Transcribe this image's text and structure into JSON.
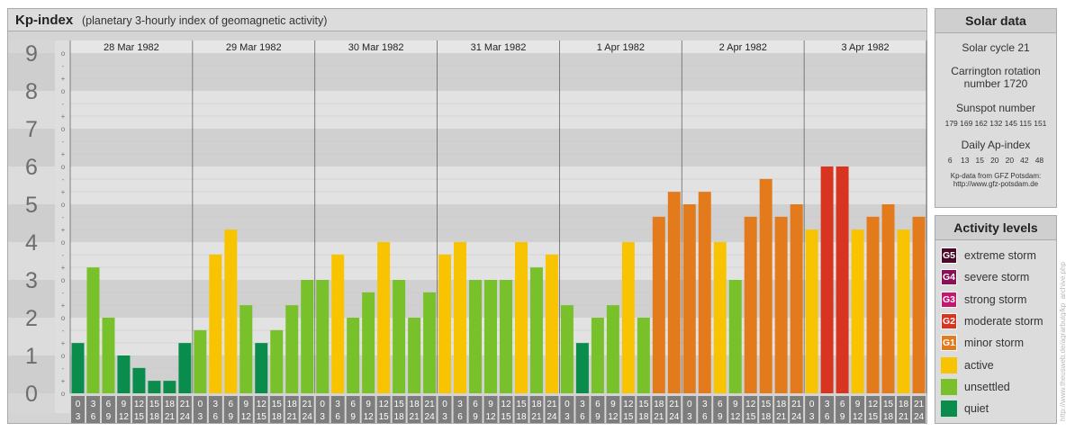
{
  "header": {
    "title": "Kp-index",
    "subtitle": "(planetary 3-hourly index of geomagnetic activity)"
  },
  "chart_data": {
    "type": "bar",
    "ylim": [
      0,
      9
    ],
    "y_ticks": [
      "0",
      "1",
      "2",
      "3",
      "4",
      "5",
      "6",
      "7",
      "8",
      "9"
    ],
    "y_minor_ticks": [
      "o",
      "+",
      "-",
      "o"
    ],
    "days": [
      "28 Mar 1982",
      "29 Mar 1982",
      "30 Mar 1982",
      "31 Mar 1982",
      "1 Apr 1982",
      "2 Apr 1982",
      "3 Apr 1982"
    ],
    "interval_labels": [
      [
        "0",
        "3"
      ],
      [
        "3",
        "6"
      ],
      [
        "6",
        "9"
      ],
      [
        "9",
        "12"
      ],
      [
        "12",
        "15"
      ],
      [
        "15",
        "18"
      ],
      [
        "18",
        "21"
      ],
      [
        "21",
        "24"
      ]
    ],
    "values": [
      [
        1.33,
        3.33,
        2.0,
        1.0,
        0.67,
        0.33,
        0.33,
        1.33
      ],
      [
        1.67,
        3.67,
        4.33,
        2.33,
        1.33,
        1.67,
        2.33,
        3.0
      ],
      [
        3.0,
        3.67,
        2.0,
        2.67,
        4.0,
        3.0,
        2.0,
        2.67
      ],
      [
        3.67,
        4.0,
        3.0,
        3.0,
        3.0,
        4.0,
        3.33,
        3.67
      ],
      [
        2.33,
        1.33,
        2.0,
        2.33,
        4.0,
        2.0,
        4.67,
        5.33
      ],
      [
        5.0,
        5.33,
        4.0,
        3.0,
        4.67,
        5.67,
        4.67,
        5.0
      ],
      [
        4.33,
        6.0,
        6.0,
        4.33,
        4.67,
        5.0,
        4.33,
        4.67
      ]
    ],
    "colors": {
      "quiet": "#0a8c4c",
      "unsettled": "#79c12a",
      "active": "#f8c300",
      "G1": "#e37b1c",
      "G2": "#d9341f",
      "G3": "#c4186f",
      "G4": "#8a1058",
      "G5": "#4c0a2a"
    }
  },
  "solar": {
    "head": "Solar data",
    "cycle": "Solar cycle 21",
    "carrington_1": "Carrington rotation",
    "carrington_2": "number 1720",
    "sunspot_title": "Sunspot number",
    "sunspots": "179 169 162 132 145 115 151",
    "ap_title": "Daily Ap-index",
    "ap": "6    13   15   20   20   42   48",
    "source_1": "Kp-data from GFZ Potsdam:",
    "source_2": "http://www.gfz-potsdam.de"
  },
  "activity": {
    "head": "Activity levels",
    "levels": [
      {
        "code": "G5",
        "label": "extreme storm",
        "color": "#4c0a2a"
      },
      {
        "code": "G4",
        "label": "severe storm",
        "color": "#8a1058"
      },
      {
        "code": "G3",
        "label": "strong storm",
        "color": "#c4186f"
      },
      {
        "code": "G2",
        "label": "moderate storm",
        "color": "#d9341f"
      },
      {
        "code": "G1",
        "label": "minor storm",
        "color": "#e37b1c"
      },
      {
        "code": "",
        "label": "active",
        "color": "#f8c300"
      },
      {
        "code": "",
        "label": "unsettled",
        "color": "#79c12a"
      },
      {
        "code": "",
        "label": "quiet",
        "color": "#0a8c4c"
      }
    ]
  },
  "watermark": "http://www.theusweb.de/agrarbulg/kp_archive.php"
}
